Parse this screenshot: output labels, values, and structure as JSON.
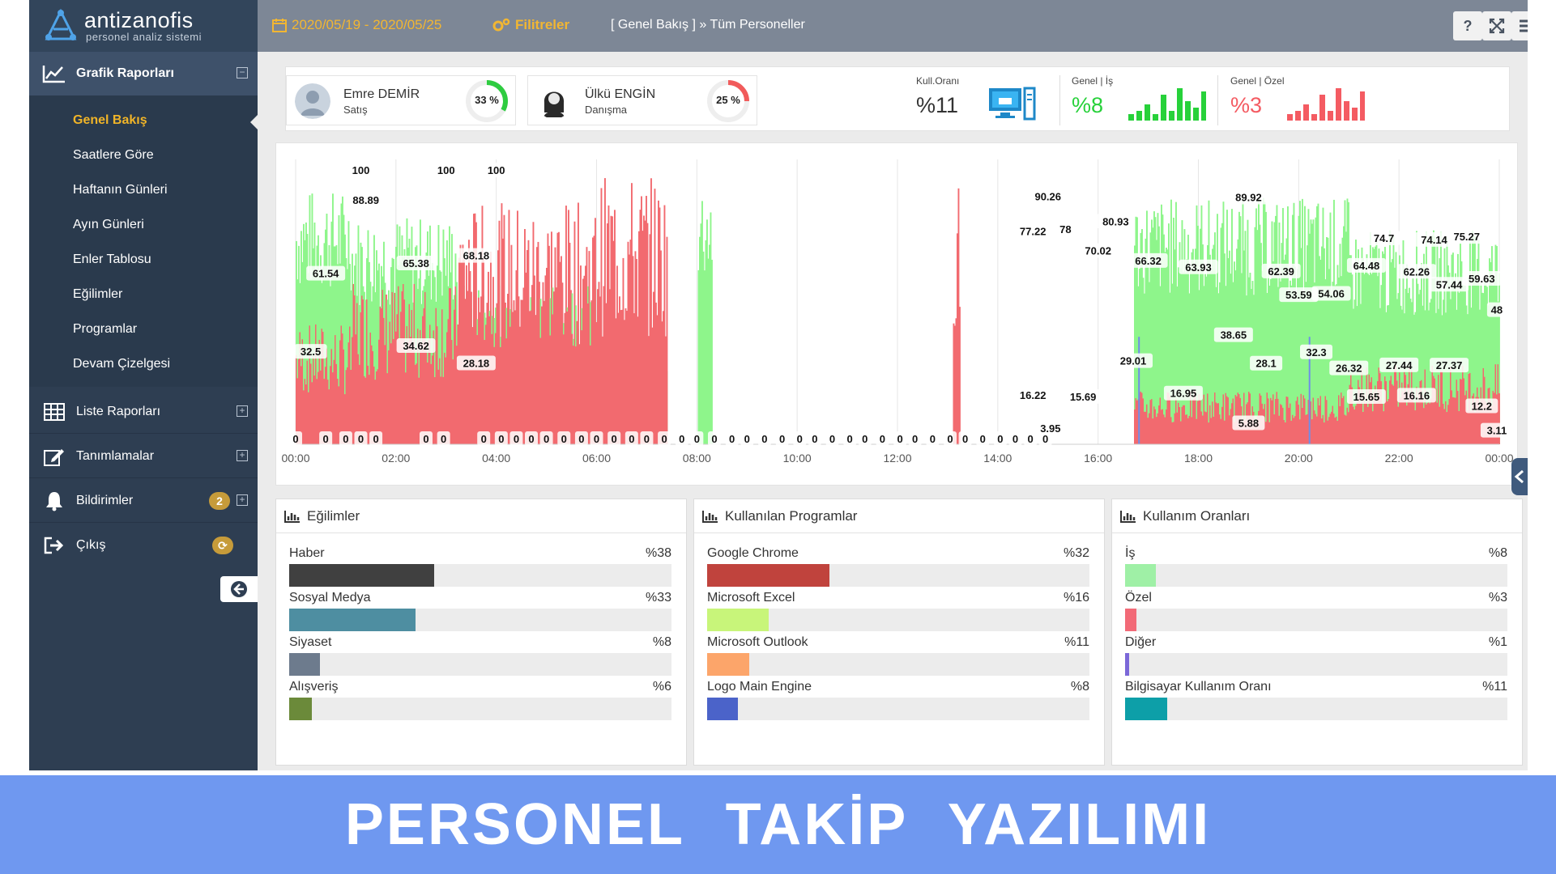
{
  "app": {
    "logo_name": "antizanofis",
    "logo_sub": "personel analiz sistemi"
  },
  "sidebar": {
    "sections": [
      {
        "label": "Grafik Raporları",
        "icon": "line-chart-icon",
        "toggle": "⊟"
      },
      {
        "label": "Liste Raporları",
        "icon": "table-icon",
        "toggle": "⊞"
      },
      {
        "label": "Tanımlamalar",
        "icon": "edit-icon",
        "toggle": "⊞"
      },
      {
        "label": "Bildirimler",
        "icon": "bell-icon",
        "toggle": "⊞",
        "badge": "2"
      },
      {
        "label": "Çıkış",
        "icon": "logout-icon",
        "badge": "⟳"
      }
    ],
    "submenu": [
      "Genel Bakış",
      "Saatlere Göre",
      "Haftanın Günleri",
      "Ayın Günleri",
      "Enler Tablosu",
      "Eğilimler",
      "Programlar",
      "Devam Çizelgesi"
    ],
    "active_sub": "Genel Bakış"
  },
  "header": {
    "date_range": "2020/05/19 - 2020/05/25",
    "filters": "Filitreler",
    "breadcrumb": "[ Genel Bakış ] » Tüm Personeller",
    "btn_help": "?"
  },
  "people": [
    {
      "name": "Emre DEMİR",
      "dept": "Satış",
      "percent_label": "33 %",
      "percent": 33,
      "gauge_color": "#2ecc40"
    },
    {
      "name": "Ülkü ENGİN",
      "dept": "Danışma",
      "percent_label": "25 %",
      "percent": 25,
      "gauge_color": "#f15b5b"
    }
  ],
  "kpis": {
    "usage_title": "Kull.Oranı",
    "usage_value": "%11",
    "work_title": "Genel | İş",
    "work_value": "%8",
    "work_color": "#27d13a",
    "work_spark": [
      2,
      3,
      5,
      2,
      8,
      3,
      10,
      6,
      4,
      9
    ],
    "private_title": "Genel | Özel",
    "private_value": "%3",
    "private_color": "#f45b62",
    "private_spark": [
      2,
      3,
      5,
      2,
      8,
      3,
      10,
      6,
      4,
      9
    ]
  },
  "chart_data": {
    "type": "area",
    "x_ticks": [
      "00:00",
      "02:00",
      "04:00",
      "06:00",
      "08:00",
      "10:00",
      "12:00",
      "14:00",
      "16:00",
      "18:00",
      "20:00",
      "22:00",
      "00:00"
    ],
    "ylim": [
      0,
      100
    ],
    "colors": {
      "work": "#8ef58b",
      "private": "#f26a6f",
      "other": "#6f8ee8"
    },
    "labels": [
      {
        "t": 0.0,
        "v": "0",
        "y": 0
      },
      {
        "t": 0.3,
        "v": "32.5",
        "y": 32.5
      },
      {
        "t": 0.6,
        "v": "61.54",
        "y": 61.54
      },
      {
        "t": 1.3,
        "v": "100",
        "y": 100
      },
      {
        "t": 0.6,
        "v": "0",
        "y": 0
      },
      {
        "t": 1.0,
        "v": "0",
        "y": 0
      },
      {
        "t": 1.3,
        "v": "0",
        "y": 0
      },
      {
        "t": 1.6,
        "v": "0",
        "y": 0
      },
      {
        "t": 1.4,
        "v": "88.89",
        "y": 88.89
      },
      {
        "t": 2.4,
        "v": "65.38",
        "y": 65.38
      },
      {
        "t": 2.4,
        "v": "34.62",
        "y": 34.62
      },
      {
        "t": 2.6,
        "v": "0",
        "y": 0
      },
      {
        "t": 2.95,
        "v": "0",
        "y": 0
      },
      {
        "t": 3.0,
        "v": "100",
        "y": 100
      },
      {
        "t": 3.6,
        "v": "68.18",
        "y": 68.18
      },
      {
        "t": 3.6,
        "v": "28.18",
        "y": 28.18
      },
      {
        "t": 4.0,
        "v": "100",
        "y": 100
      },
      {
        "t": 3.75,
        "v": "0",
        "y": 0
      },
      {
        "t": 4.1,
        "v": "0",
        "y": 0
      },
      {
        "t": 4.4,
        "v": "0",
        "y": 0
      },
      {
        "t": 4.7,
        "v": "0",
        "y": 0
      },
      {
        "t": 5.0,
        "v": "0",
        "y": 0
      },
      {
        "t": 5.35,
        "v": "0",
        "y": 0
      },
      {
        "t": 5.7,
        "v": "0",
        "y": 0
      },
      {
        "t": 6.0,
        "v": "0",
        "y": 0
      },
      {
        "t": 6.35,
        "v": "0",
        "y": 0
      },
      {
        "t": 6.7,
        "v": "0",
        "y": 0
      },
      {
        "t": 7.0,
        "v": "0",
        "y": 0
      },
      {
        "t": 7.35,
        "v": "0",
        "y": 0
      },
      {
        "t": 7.7,
        "v": "0",
        "y": 0
      },
      {
        "t": 8.0,
        "v": "0",
        "y": 0
      },
      {
        "t": 8.35,
        "v": "0",
        "y": 0
      },
      {
        "t": 8.7,
        "v": "0",
        "y": 0
      },
      {
        "t": 9.0,
        "v": "0",
        "y": 0
      },
      {
        "t": 9.35,
        "v": "0",
        "y": 0
      },
      {
        "t": 9.7,
        "v": "0",
        "y": 0
      },
      {
        "t": 10.05,
        "v": "0",
        "y": 0
      },
      {
        "t": 10.35,
        "v": "0",
        "y": 0
      },
      {
        "t": 10.7,
        "v": "0",
        "y": 0
      },
      {
        "t": 11.05,
        "v": "0",
        "y": 0
      },
      {
        "t": 11.35,
        "v": "0",
        "y": 0
      },
      {
        "t": 11.7,
        "v": "0",
        "y": 0
      },
      {
        "t": 12.05,
        "v": "0",
        "y": 0
      },
      {
        "t": 12.35,
        "v": "0",
        "y": 0
      },
      {
        "t": 12.7,
        "v": "0",
        "y": 0
      },
      {
        "t": 13.05,
        "v": "0",
        "y": 0
      },
      {
        "t": 13.35,
        "v": "0",
        "y": 0
      },
      {
        "t": 13.7,
        "v": "0",
        "y": 0
      },
      {
        "t": 14.05,
        "v": "0",
        "y": 0
      },
      {
        "t": 14.35,
        "v": "0",
        "y": 0
      },
      {
        "t": 14.65,
        "v": "0",
        "y": 0
      },
      {
        "t": 14.95,
        "v": "0",
        "y": 0
      },
      {
        "t": 14.7,
        "v": "77.22",
        "y": 77.22
      },
      {
        "t": 15.0,
        "v": "90.26",
        "y": 90.26
      },
      {
        "t": 15.35,
        "v": "78",
        "y": 78
      },
      {
        "t": 14.7,
        "v": "16.22",
        "y": 16.22
      },
      {
        "t": 15.05,
        "v": "3.95",
        "y": 3.95
      },
      {
        "t": 15.7,
        "v": "15.69",
        "y": 15.69
      },
      {
        "t": 16.0,
        "v": "70.02",
        "y": 70.02
      },
      {
        "t": 16.35,
        "v": "80.93",
        "y": 80.93
      },
      {
        "t": 16.7,
        "v": "29.01",
        "y": 29.01
      },
      {
        "t": 17.0,
        "v": "66.32",
        "y": 66.32
      },
      {
        "t": 17.7,
        "v": "16.95",
        "y": 16.95
      },
      {
        "t": 18.0,
        "v": "63.93",
        "y": 63.93
      },
      {
        "t": 18.7,
        "v": "38.65",
        "y": 38.65
      },
      {
        "t": 19.0,
        "v": "89.92",
        "y": 89.92
      },
      {
        "t": 19.0,
        "v": "5.88",
        "y": 5.88
      },
      {
        "t": 19.35,
        "v": "28.1",
        "y": 28.1
      },
      {
        "t": 19.65,
        "v": "62.39",
        "y": 62.39
      },
      {
        "t": 20.0,
        "v": "53.59",
        "y": 53.59
      },
      {
        "t": 20.35,
        "v": "32.3",
        "y": 32.3
      },
      {
        "t": 20.65,
        "v": "54.06",
        "y": 54.06
      },
      {
        "t": 21.0,
        "v": "26.32",
        "y": 26.32
      },
      {
        "t": 21.35,
        "v": "64.48",
        "y": 64.48
      },
      {
        "t": 21.35,
        "v": "15.65",
        "y": 15.65
      },
      {
        "t": 21.7,
        "v": "74.7",
        "y": 74.7
      },
      {
        "t": 22.0,
        "v": "27.44",
        "y": 27.44
      },
      {
        "t": 22.35,
        "v": "62.26",
        "y": 62.26
      },
      {
        "t": 22.35,
        "v": "16.16",
        "y": 16.16
      },
      {
        "t": 22.7,
        "v": "74.14",
        "y": 74.14
      },
      {
        "t": 23.0,
        "v": "27.37",
        "y": 27.37
      },
      {
        "t": 23.0,
        "v": "57.44",
        "y": 57.44
      },
      {
        "t": 23.35,
        "v": "75.27",
        "y": 75.27
      },
      {
        "t": 23.65,
        "v": "12.2",
        "y": 12.2
      },
      {
        "t": 23.65,
        "v": "59.63",
        "y": 59.63
      },
      {
        "t": 23.95,
        "v": "48",
        "y": 48
      },
      {
        "t": 23.95,
        "v": "3.11",
        "y": 3.11
      }
    ]
  },
  "panels": [
    {
      "title": "Eğilimler",
      "rows": [
        {
          "label": "Haber",
          "pct": "%38",
          "value": 38,
          "color": "#404040"
        },
        {
          "label": "Sosyal Medya",
          "pct": "%33",
          "value": 33,
          "color": "#4e8ea1"
        },
        {
          "label": "Siyaset",
          "pct": "%8",
          "value": 8,
          "color": "#6d7b8d"
        },
        {
          "label": "Alışveriş",
          "pct": "%6",
          "value": 6,
          "color": "#6b8a3a"
        }
      ]
    },
    {
      "title": "Kullanılan Programlar",
      "rows": [
        {
          "label": "Google Chrome",
          "pct": "%32",
          "value": 32,
          "color": "#c0433d"
        },
        {
          "label": "Microsoft Excel",
          "pct": "%16",
          "value": 16,
          "color": "#c8f57a"
        },
        {
          "label": "Microsoft Outlook",
          "pct": "%11",
          "value": 11,
          "color": "#fca56a"
        },
        {
          "label": "Logo Main Engine",
          "pct": "%8",
          "value": 8,
          "color": "#4b63c9"
        }
      ]
    },
    {
      "title": "Kullanım Oranları",
      "rows": [
        {
          "label": "İş",
          "pct": "%8",
          "value": 8,
          "color": "#9ff0a6"
        },
        {
          "label": "Özel",
          "pct": "%3",
          "value": 3,
          "color": "#f26a77"
        },
        {
          "label": "Diğer",
          "pct": "%1",
          "value": 1,
          "color": "#7b68d8"
        },
        {
          "label": "Bilgisayar Kullanım Oranı",
          "pct": "%11",
          "value": 11,
          "color": "#0d9fa8"
        }
      ]
    }
  ],
  "banner": "PERSONEL  TAKİP  YAZILIMI"
}
